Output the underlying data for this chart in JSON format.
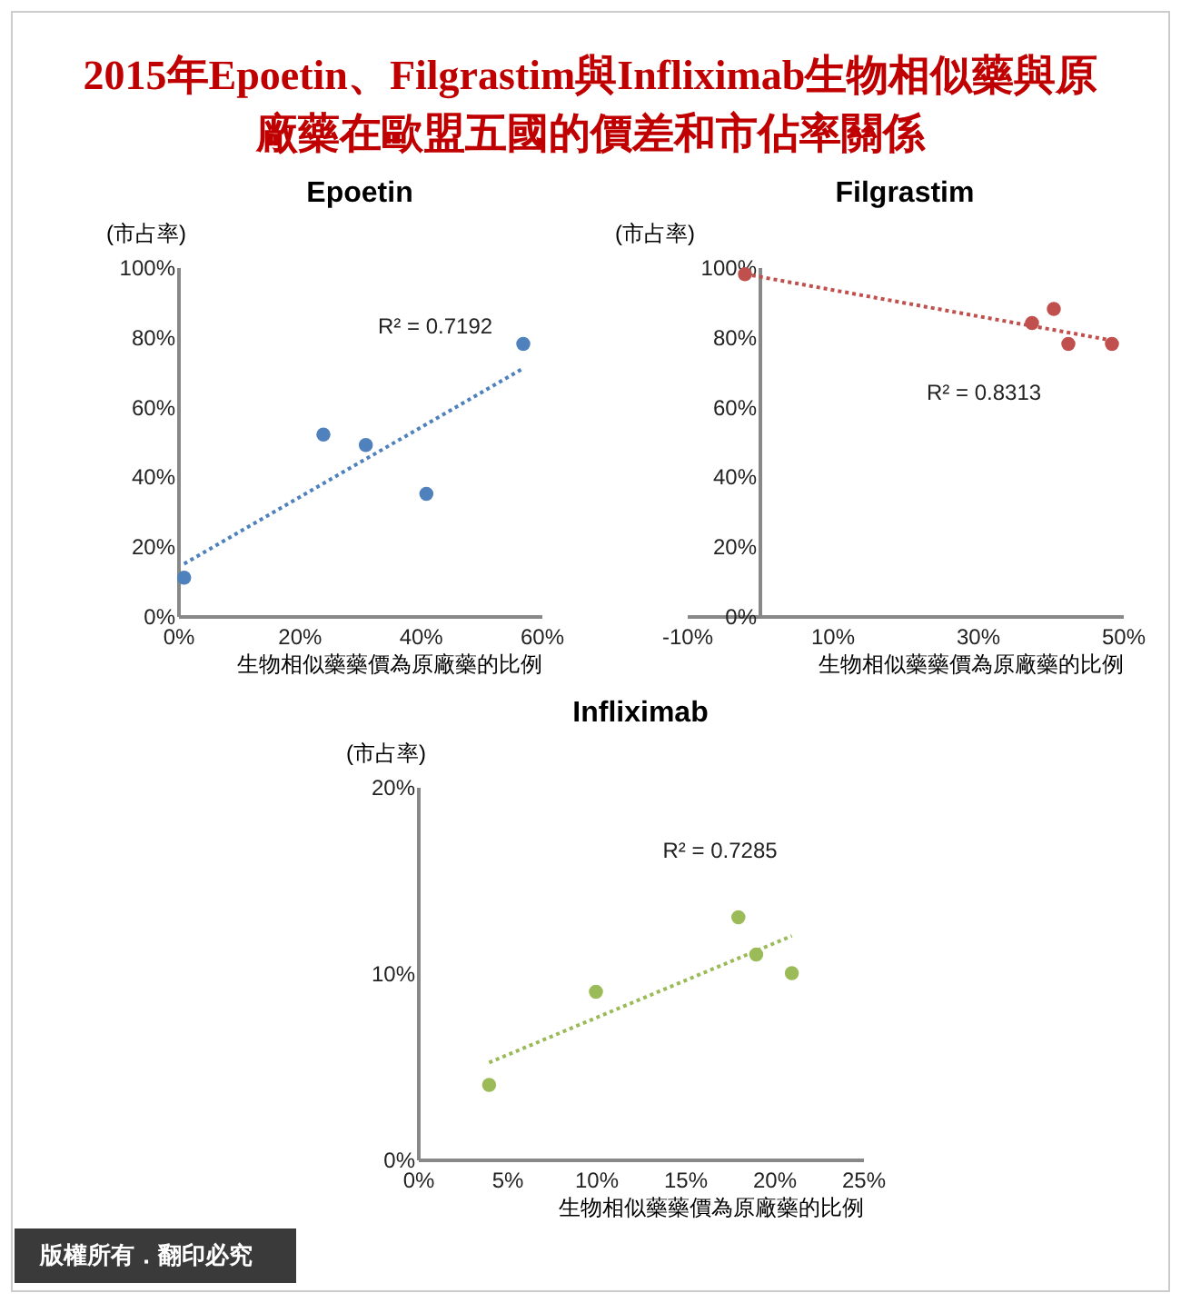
{
  "chart_data": [
    {
      "type": "scatter",
      "title": "Epoetin",
      "xlabel": "生物相似藥藥價為原廠藥的比例",
      "ylabel": "(市占率)",
      "annotations": [
        "R² = 0.7192",
        "2015年Epoetin、Filgrastim與Infliximab生物相似藥與原廠藥在歐盟五國的價差和市佔率關係"
      ],
      "xlim": [
        0,
        60
      ],
      "xticks": [
        {
          "value": 0,
          "label": "0%"
        },
        {
          "value": 20,
          "label": "20%"
        },
        {
          "value": 40,
          "label": "40%"
        },
        {
          "value": 60,
          "label": "60%"
        }
      ],
      "ylim": [
        0,
        100
      ],
      "yticks": [
        {
          "value": 0,
          "label": "0%"
        },
        {
          "value": 20,
          "label": "20%"
        },
        {
          "value": 40,
          "label": "40%"
        },
        {
          "value": 60,
          "label": "60%"
        },
        {
          "value": 80,
          "label": "80%"
        },
        {
          "value": 100,
          "label": "100%"
        }
      ],
      "marker": "circle",
      "series": [
        {
          "type": "scatter",
          "color": "#4f81bd",
          "x": [
            1,
            24,
            31,
            41,
            57
          ],
          "values": [
            11,
            52,
            49,
            35,
            78
          ]
        },
        {
          "type": "line",
          "color": "#4f81bd",
          "line_style": "dotted",
          "marker": "none",
          "x": [
            1,
            57
          ],
          "values": [
            15,
            71
          ]
        }
      ]
    },
    {
      "type": "scatter",
      "title": "Filgrastim",
      "xlabel": "生物相似藥藥價為原廠藥的比例",
      "ylabel": "(市占率)",
      "annotations": [
        "R² = 0.8313"
      ],
      "xlim": [
        -10,
        50
      ],
      "xticks": [
        {
          "value": -10,
          "label": "-10%"
        },
        {
          "value": 10,
          "label": "10%"
        },
        {
          "value": 30,
          "label": "30%"
        },
        {
          "value": 50,
          "label": "50%"
        }
      ],
      "ylim": [
        0,
        100
      ],
      "yticks": [
        {
          "value": 0,
          "label": "0%"
        },
        {
          "value": 20,
          "label": "20%"
        },
        {
          "value": 40,
          "label": "40%"
        },
        {
          "value": 60,
          "label": "60%"
        },
        {
          "value": 80,
          "label": "80%"
        },
        {
          "value": 100,
          "label": "100%"
        }
      ],
      "marker": "circle",
      "series": [
        {
          "type": "scatter",
          "color": "#c0504d",
          "x": [
            -2,
            37.5,
            40.5,
            42.5,
            48.5
          ],
          "values": [
            98,
            84,
            88,
            78,
            78
          ]
        },
        {
          "type": "line",
          "color": "#c0504d",
          "line_style": "dotted",
          "marker": "none",
          "x": [
            -2,
            48.5
          ],
          "values": [
            98,
            79
          ]
        }
      ]
    },
    {
      "type": "scatter",
      "title": "Infliximab",
      "xlabel": "生物相似藥藥價為原廠藥的比例",
      "ylabel": "(市占率)",
      "annotations": [
        "R² = 0.7285",
        "版權所有．翻印必究"
      ],
      "xlim": [
        0,
        25
      ],
      "xticks": [
        {
          "value": 0,
          "label": "0%"
        },
        {
          "value": 5,
          "label": "5%"
        },
        {
          "value": 10,
          "label": "10%"
        },
        {
          "value": 15,
          "label": "15%"
        },
        {
          "value": 20,
          "label": "20%"
        },
        {
          "value": 25,
          "label": "25%"
        }
      ],
      "ylim": [
        0,
        20
      ],
      "yticks": [
        {
          "value": 0,
          "label": "0%"
        },
        {
          "value": 10,
          "label": "10%"
        },
        {
          "value": 20,
          "label": "20%"
        }
      ],
      "marker": "circle",
      "series": [
        {
          "type": "scatter",
          "color": "#9bbb59",
          "x": [
            4,
            10,
            18,
            19,
            21
          ],
          "values": [
            4,
            9,
            13,
            11,
            10
          ]
        },
        {
          "type": "line",
          "color": "#9bbb59",
          "line_style": "dotted",
          "marker": "none",
          "x": [
            4,
            21
          ],
          "values": [
            5.2,
            12
          ]
        }
      ]
    }
  ]
}
